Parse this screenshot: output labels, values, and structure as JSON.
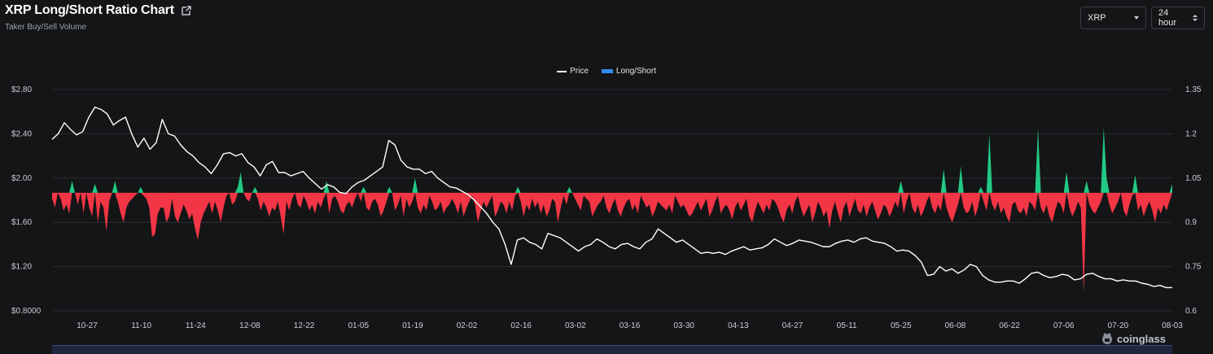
{
  "header": {
    "title": "XRP Long/Short Ratio Chart",
    "subtitle": "Taker Buy/Sell Volume"
  },
  "controls": {
    "coin": "XRP",
    "period": "24 hour"
  },
  "legend": {
    "price": "Price",
    "ratio": "Long/Short"
  },
  "watermark": "coinglass",
  "colors": {
    "price_line": "#ffffff",
    "above": "#22c984",
    "below": "#f23645",
    "grid": "#2a2c31",
    "legend_ratio": "#2f8cf2"
  },
  "icons": [
    "external-link-icon",
    "chevron-down-icon",
    "up-down-icon",
    "coinglass-logo-icon"
  ],
  "chart_data": {
    "type": "line",
    "x_ticks": [
      "10-27",
      "11-10",
      "11-24",
      "12-08",
      "12-22",
      "01-05",
      "01-19",
      "02-02",
      "02-16",
      "03-02",
      "03-16",
      "03-30",
      "04-13",
      "04-27",
      "05-11",
      "05-25",
      "06-08",
      "06-22",
      "07-06",
      "07-20",
      "08-03"
    ],
    "y_left_ticks": [
      "$2.80",
      "$2.40",
      "$2.00",
      "$1.60",
      "$1.20",
      "$0.8000"
    ],
    "y_left_range": [
      0.8,
      2.8
    ],
    "y_right_ticks": [
      "1.35",
      "1.2",
      "1.05",
      "0.9",
      "0.75",
      "0.6"
    ],
    "y_right_range": [
      0.6,
      1.35
    ],
    "ratio_baseline": 1.0,
    "series": [
      {
        "name": "Price",
        "axis": "left",
        "values": [
          2.35,
          2.4,
          2.5,
          2.44,
          2.39,
          2.42,
          2.55,
          2.64,
          2.62,
          2.58,
          2.48,
          2.52,
          2.55,
          2.4,
          2.28,
          2.36,
          2.26,
          2.32,
          2.53,
          2.4,
          2.38,
          2.3,
          2.24,
          2.2,
          2.14,
          2.1,
          2.04,
          2.12,
          2.22,
          2.23,
          2.2,
          2.22,
          2.14,
          2.1,
          2.02,
          2.12,
          2.15,
          2.05,
          2.05,
          2.02,
          2.04,
          2.06,
          2.0,
          1.95,
          1.9,
          1.94,
          1.92,
          1.87,
          1.86,
          1.92,
          1.96,
          1.98,
          2.02,
          2.06,
          2.1,
          2.34,
          2.3,
          2.16,
          2.1,
          2.08,
          2.08,
          2.04,
          2.06,
          2.0,
          1.96,
          1.92,
          1.91,
          1.88,
          1.85,
          1.8,
          1.74,
          1.68,
          1.6,
          1.54,
          1.4,
          1.22,
          1.44,
          1.46,
          1.42,
          1.4,
          1.36,
          1.5,
          1.48,
          1.46,
          1.42,
          1.38,
          1.34,
          1.38,
          1.4,
          1.45,
          1.42,
          1.38,
          1.36,
          1.4,
          1.41,
          1.38,
          1.36,
          1.42,
          1.45,
          1.54,
          1.5,
          1.46,
          1.42,
          1.44,
          1.4,
          1.36,
          1.32,
          1.33,
          1.32,
          1.33,
          1.31,
          1.34,
          1.36,
          1.38,
          1.35,
          1.36,
          1.37,
          1.4,
          1.45,
          1.42,
          1.39,
          1.41,
          1.44,
          1.43,
          1.42,
          1.4,
          1.38,
          1.38,
          1.41,
          1.43,
          1.44,
          1.42,
          1.45,
          1.46,
          1.43,
          1.42,
          1.41,
          1.38,
          1.34,
          1.35,
          1.34,
          1.3,
          1.24,
          1.12,
          1.13,
          1.2,
          1.16,
          1.18,
          1.14,
          1.17,
          1.22,
          1.2,
          1.12,
          1.08,
          1.06,
          1.06,
          1.07,
          1.07,
          1.05,
          1.09,
          1.14,
          1.15,
          1.12,
          1.1,
          1.11,
          1.13,
          1.12,
          1.08,
          1.09,
          1.13,
          1.14,
          1.11,
          1.09,
          1.09,
          1.07,
          1.08,
          1.07,
          1.07,
          1.05,
          1.04,
          1.02,
          1.03,
          1.01,
          1.01
        ]
      },
      {
        "name": "Long/Short",
        "axis": "right",
        "values": [
          0.98,
          0.95,
          1.0,
          0.98,
          0.94,
          0.96,
          0.93,
          1.04,
          1.0,
          0.96,
          1.0,
          0.93,
          1.0,
          0.95,
          0.92,
          1.03,
          0.9,
          0.97,
          0.95,
          0.87,
          0.97,
          1.0,
          1.04,
          0.97,
          0.93,
          0.9,
          0.95,
          0.97,
          0.98,
          0.99,
          1.0,
          1.02,
          0.99,
          0.98,
          0.95,
          0.85,
          0.86,
          0.93,
          0.95,
          0.95,
          0.9,
          0.92,
          0.98,
          0.92,
          0.9,
          0.93,
          0.96,
          0.94,
          0.91,
          0.93,
          0.88,
          0.84,
          0.9,
          0.93,
          0.95,
          0.97,
          0.93,
          0.97,
          0.94,
          0.9,
          0.95,
          0.99,
          1.0,
          0.96,
          0.97,
          1.02,
          1.07,
          1.0,
          0.98,
          0.97,
          1.0,
          1.02,
          0.98,
          0.94,
          0.97,
          0.95,
          0.92,
          0.95,
          0.94,
          0.97,
          0.92,
          0.86,
          0.97,
          0.94,
          0.98,
          1.0,
          0.96,
          0.95,
          0.99,
          0.97,
          0.94,
          0.96,
          0.93,
          0.97,
          0.95,
          0.98,
          1.04,
          0.93,
          0.98,
          0.99,
          0.97,
          0.94,
          0.93,
          0.96,
          0.97,
          0.95,
          0.98,
          1.0,
          0.97,
          1.02,
          0.95,
          0.94,
          0.97,
          0.98,
          0.96,
          0.92,
          0.94,
          0.97,
          1.02,
          1.0,
          0.94,
          0.96,
          0.99,
          0.92,
          0.98,
          0.95,
          0.97,
          1.05,
          0.95,
          0.93,
          0.96,
          0.94,
          0.99,
          0.97,
          0.94,
          0.95,
          0.97,
          0.93,
          0.95,
          0.96,
          0.98,
          0.96,
          0.93,
          0.97,
          0.92,
          0.95,
          0.97,
          0.99,
          0.96,
          0.9,
          0.94,
          0.97,
          0.95,
          0.97,
          0.99,
          0.92,
          0.94,
          0.97,
          0.96,
          0.93,
          0.97,
          0.94,
          0.99,
          1.02,
          0.97,
          0.92,
          0.96,
          0.94,
          0.98,
          0.95,
          0.97,
          0.93,
          0.96,
          0.92,
          0.94,
          0.98,
          0.97,
          0.9,
          0.95,
          0.99,
          0.96,
          1.02,
          1.0,
          0.98,
          0.96,
          0.94,
          0.99,
          0.98,
          0.97,
          0.92,
          0.94,
          0.96,
          0.97,
          0.99,
          0.95,
          0.93,
          0.96,
          0.98,
          0.94,
          0.92,
          0.95,
          0.97,
          0.98,
          0.94,
          0.96,
          0.93,
          0.99,
          0.97,
          0.95,
          0.96,
          0.92,
          0.94,
          0.97,
          0.96,
          0.95,
          0.94,
          0.96,
          0.93,
          0.99,
          0.97,
          0.95,
          0.96,
          0.94,
          0.92,
          0.93,
          0.95,
          0.97,
          0.94,
          0.96,
          0.98,
          0.92,
          0.94,
          0.97,
          0.99,
          0.93,
          0.95,
          0.96,
          0.94,
          0.91,
          0.95,
          0.97,
          0.94,
          0.96,
          0.98,
          0.92,
          0.9,
          0.94,
          0.97,
          0.95,
          0.93,
          0.96,
          0.94,
          0.98,
          0.97,
          0.95,
          0.92,
          0.9,
          0.94,
          0.96,
          0.93,
          0.97,
          0.99,
          0.95,
          0.92,
          0.94,
          0.96,
          0.9,
          0.93,
          0.97,
          0.95,
          0.92,
          0.94,
          0.88,
          0.94,
          0.97,
          0.93,
          0.9,
          0.95,
          0.97,
          0.92,
          0.95,
          0.98,
          0.94,
          0.93,
          0.96,
          0.92,
          0.95,
          0.97,
          0.94,
          0.91,
          0.93,
          0.96,
          0.95,
          0.92,
          0.94,
          0.97,
          0.95,
          1.04,
          0.93,
          0.97,
          1.0,
          0.95,
          0.93,
          0.96,
          0.92,
          0.94,
          0.97,
          0.99,
          0.95,
          0.93,
          0.96,
          0.94,
          1.08,
          0.95,
          0.92,
          0.9,
          0.93,
          0.96,
          1.09,
          0.95,
          0.93,
          0.94,
          0.97,
          0.92,
          0.95,
          1.02,
          0.97,
          0.94,
          1.2,
          0.96,
          0.94,
          0.97,
          0.93,
          0.95,
          0.92,
          0.9,
          0.96,
          0.97,
          0.94,
          0.93,
          0.95,
          0.92,
          0.97,
          0.96,
          0.94,
          1.22,
          0.95,
          0.93,
          0.96,
          0.92,
          0.9,
          0.94,
          0.97,
          0.96,
          0.93,
          1.07,
          0.95,
          0.92,
          0.94,
          0.97,
          0.95,
          0.66,
          1.04,
          0.96,
          0.94,
          0.93,
          0.95,
          0.97,
          1.22,
          1.05,
          0.96,
          0.93,
          0.95,
          0.97,
          1.0,
          0.94,
          0.92,
          0.96,
          0.99,
          1.06,
          0.94,
          0.96,
          0.92,
          0.95,
          0.97,
          0.94,
          0.9,
          0.95,
          0.93,
          0.96,
          0.94,
          0.97,
          1.03
        ]
      }
    ],
    "grid": true,
    "legend_position": "top-center"
  }
}
